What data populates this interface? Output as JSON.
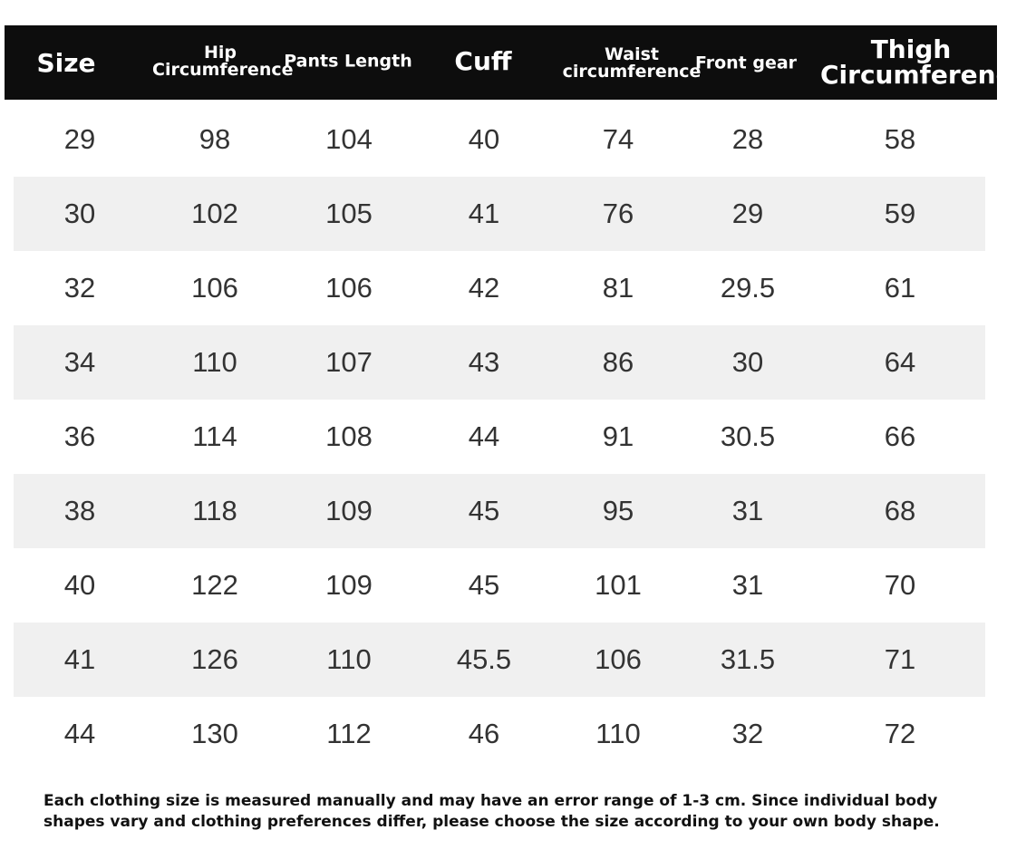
{
  "table": {
    "header": [
      "Size",
      "Hip Circumference",
      "Pants Length",
      "Cuff",
      "Waist circumference",
      "Front gear",
      "Thigh Circumferenc"
    ],
    "rows": [
      [
        29,
        98,
        104,
        40,
        74,
        28,
        58
      ],
      [
        30,
        102,
        105,
        41,
        76,
        29,
        59
      ],
      [
        32,
        106,
        106,
        42,
        81,
        29.5,
        61
      ],
      [
        34,
        110,
        107,
        43,
        86,
        30,
        64
      ],
      [
        36,
        114,
        108,
        44,
        91,
        30.5,
        66
      ],
      [
        38,
        118,
        109,
        45,
        95,
        31,
        68
      ],
      [
        40,
        122,
        109,
        45,
        101,
        31,
        70
      ],
      [
        41,
        126,
        110,
        45.5,
        106,
        31.5,
        71
      ],
      [
        44,
        130,
        112,
        46,
        110,
        32,
        72
      ]
    ]
  },
  "note": [
    "Each clothing size is measured manually and may have an error range of 1-3 cm. Since individual body",
    "shapes vary and clothing preferences differ, please choose the size according to your own body shape."
  ]
}
